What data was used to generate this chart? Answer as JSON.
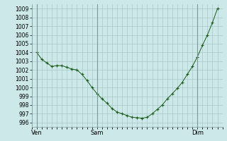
{
  "background_color": "#cce8e8",
  "plot_bg_color": "#cce8e8",
  "grid_color": "#aac8c8",
  "line_color": "#1a5c1a",
  "marker_color": "#1a5c1a",
  "ylim": [
    995.5,
    1009.5
  ],
  "yticks": [
    996,
    997,
    998,
    999,
    1000,
    1001,
    1002,
    1003,
    1004,
    1005,
    1006,
    1007,
    1008,
    1009
  ],
  "xtick_labels": [
    "Ven",
    "Sam",
    "Dim"
  ],
  "xtick_positions": [
    0,
    24,
    64
  ],
  "xlim": [
    -2,
    74
  ],
  "vline_positions": [
    0,
    24,
    64
  ],
  "x_all": [
    0,
    2,
    4,
    6,
    8,
    10,
    12,
    14,
    16,
    18,
    20,
    22,
    24,
    26,
    28,
    30,
    32,
    34,
    36,
    38,
    40,
    42,
    44,
    46,
    48,
    50,
    52,
    54,
    56,
    58,
    60,
    62,
    64,
    66,
    68,
    70,
    72
  ],
  "y_all": [
    1004.0,
    1003.2,
    1002.8,
    1002.4,
    1002.5,
    1002.5,
    1002.3,
    1002.1,
    1002.0,
    1001.5,
    1000.8,
    1000.0,
    999.3,
    998.7,
    998.2,
    997.6,
    997.2,
    997.0,
    996.8,
    996.6,
    996.55,
    996.5,
    996.6,
    997.0,
    997.5,
    998.0,
    998.7,
    999.3,
    999.9,
    1000.6,
    1001.5,
    1002.4,
    1003.5,
    1004.8,
    1006.0,
    1007.4,
    1009.0
  ]
}
